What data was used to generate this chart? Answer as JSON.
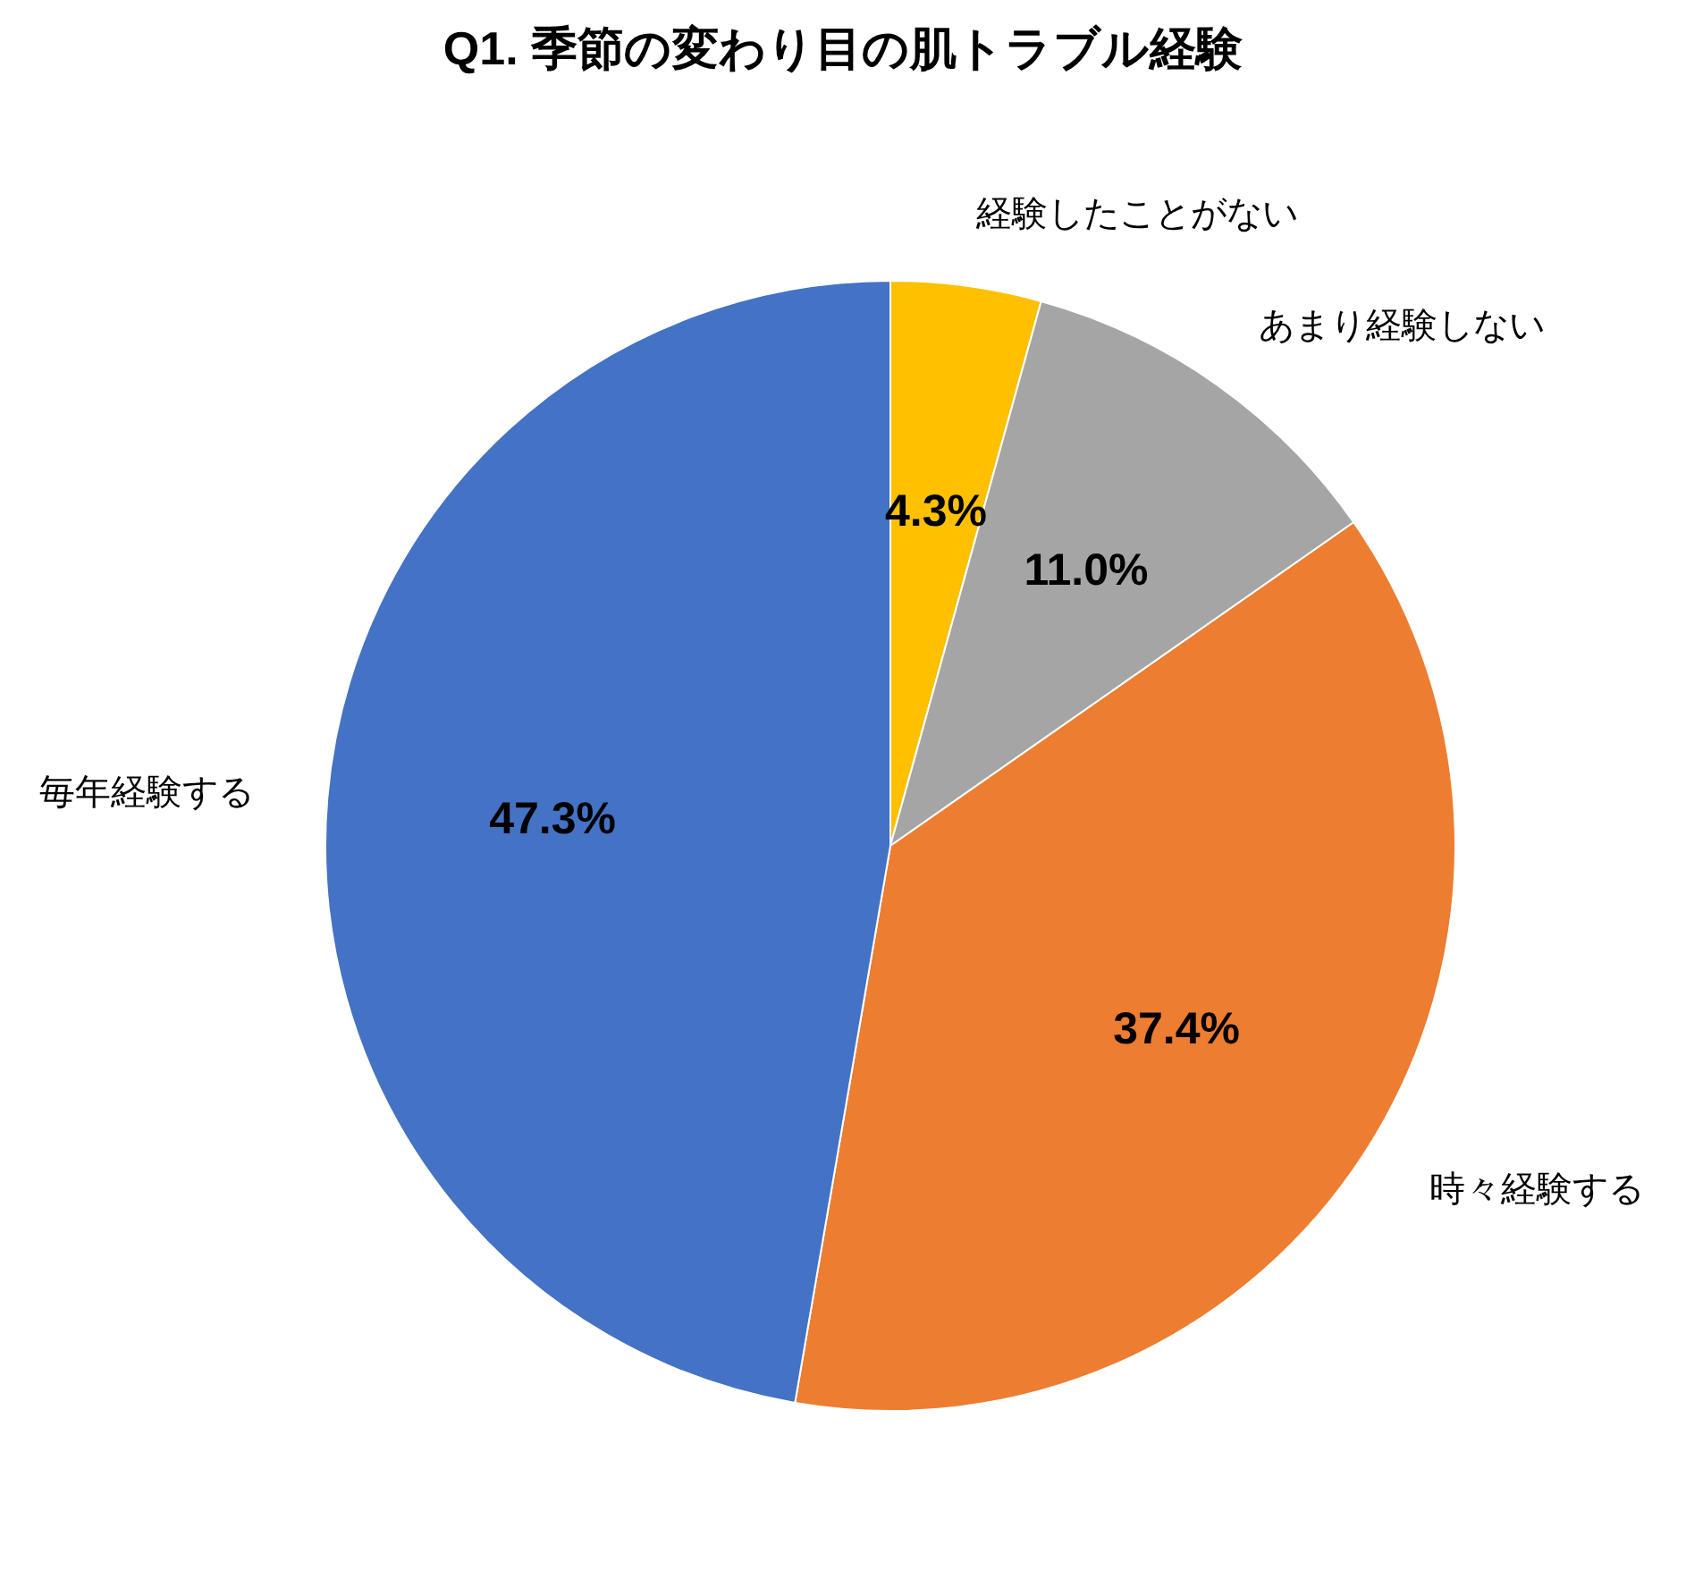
{
  "chart_data": {
    "type": "pie",
    "title": "Q1. 季節の変わり目の肌トラブル経験",
    "categories": [
      "経験したことがない",
      "あまり経験しない",
      "時々経験する",
      "毎年経験する"
    ],
    "values": [
      4.3,
      11.0,
      37.4,
      47.3
    ],
    "colors": [
      "#ffc000",
      "#a5a5a5",
      "#ed7d31",
      "#4472c4"
    ],
    "value_labels": [
      "4.3%",
      "11.0%",
      "37.4%",
      "47.3%"
    ]
  }
}
